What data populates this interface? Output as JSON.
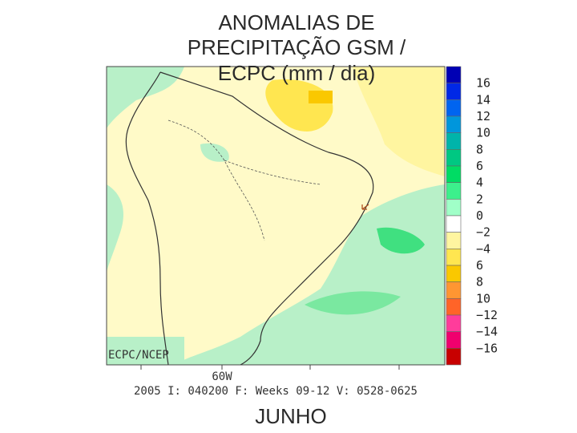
{
  "title": [
    "ANOMALIAS DE",
    "PRECIPITAÇÃO GSM /",
    "ECPC (mm / dia)"
  ],
  "colorbar": {
    "labels": [
      "16",
      "14",
      "12",
      "10",
      "8",
      "6",
      "4",
      "2",
      "0",
      "−2",
      "−4",
      "6",
      "8",
      "10",
      "−12",
      "−14",
      "−16"
    ],
    "colors": [
      "#0000b4",
      "#0028e6",
      "#0064f0",
      "#0096dc",
      "#00b4aa",
      "#00c882",
      "#00dc64",
      "#3cf08c",
      "#a0ffc8",
      "#ffffff",
      "#fff5a0",
      "#ffe650",
      "#fac800",
      "#ff9632",
      "#ff6428",
      "#ff3c9b",
      "#f0006e",
      "#c80000"
    ]
  },
  "map": {
    "credit": "ECPC/NCEP",
    "lon_label": "60W",
    "footer": "2005 I: 040200 F: Weeks 09-12 V: 0528-0625"
  },
  "caption": "JUNHO"
}
